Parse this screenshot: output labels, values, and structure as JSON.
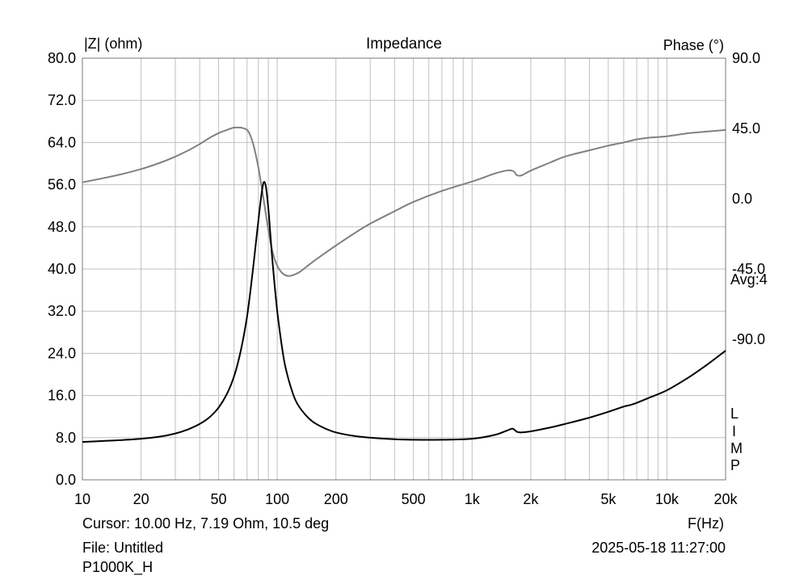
{
  "chart_data": {
    "type": "line",
    "title": "Impedance",
    "ylabel_left": "|Z| (ohm)",
    "ylabel_right": "Phase (°)",
    "xlabel": "F(Hz)",
    "xscale": "log",
    "xlim": [
      10,
      20000
    ],
    "ylim_left": [
      0,
      80
    ],
    "ylim_right": [
      -180,
      90
    ],
    "grid": true,
    "x_ticks": [
      {
        "v": 10,
        "label": "10"
      },
      {
        "v": 20,
        "label": "20"
      },
      {
        "v": 50,
        "label": "50"
      },
      {
        "v": 100,
        "label": "100"
      },
      {
        "v": 200,
        "label": "200"
      },
      {
        "v": 500,
        "label": "500"
      },
      {
        "v": 1000,
        "label": "1k"
      },
      {
        "v": 2000,
        "label": "2k"
      },
      {
        "v": 5000,
        "label": "5k"
      },
      {
        "v": 10000,
        "label": "10k"
      },
      {
        "v": 20000,
        "label": "20k"
      }
    ],
    "y_ticks_left": [
      {
        "v": 0,
        "label": "0.0"
      },
      {
        "v": 8,
        "label": "8.0"
      },
      {
        "v": 16,
        "label": "16.0"
      },
      {
        "v": 24,
        "label": "24.0"
      },
      {
        "v": 32,
        "label": "32.0"
      },
      {
        "v": 40,
        "label": "40.0"
      },
      {
        "v": 48,
        "label": "48.0"
      },
      {
        "v": 56,
        "label": "56.0"
      },
      {
        "v": 64,
        "label": "64.0"
      },
      {
        "v": 72,
        "label": "72.0"
      },
      {
        "v": 80,
        "label": "80.0"
      }
    ],
    "y_ticks_right": [
      {
        "v": 90,
        "label": "90.0"
      },
      {
        "v": 45,
        "label": "45.0"
      },
      {
        "v": 0,
        "label": "0.0"
      },
      {
        "v": -45,
        "label": "-45.0"
      },
      {
        "v": -90,
        "label": "-90.0"
      }
    ],
    "series": [
      {
        "axis": "left",
        "color": "#000000",
        "x": [
          10,
          15,
          20,
          25,
          30,
          35,
          40,
          45,
          50,
          55,
          60,
          65,
          70,
          74,
          78,
          81,
          84,
          86,
          88,
          90,
          92,
          95,
          100,
          105,
          110,
          120,
          130,
          150,
          175,
          200,
          250,
          300,
          400,
          500,
          700,
          1000,
          1300,
          1500,
          1600,
          1650,
          1700,
          1800,
          2000,
          2500,
          3000,
          4000,
          5000,
          6000,
          6500,
          7000,
          8000,
          10000,
          13000,
          16000,
          20000
        ],
        "y": [
          7.19,
          7.5,
          7.8,
          8.2,
          8.8,
          9.6,
          10.6,
          11.9,
          13.7,
          16.2,
          19.6,
          24.5,
          31.0,
          38.0,
          45.5,
          51.0,
          55.5,
          56.5,
          55.0,
          51.5,
          47.0,
          40.5,
          32.0,
          26.0,
          21.5,
          16.5,
          13.8,
          11.2,
          9.8,
          9.0,
          8.3,
          8.0,
          7.7,
          7.6,
          7.6,
          7.8,
          8.5,
          9.3,
          9.7,
          9.5,
          9.1,
          9.0,
          9.2,
          9.9,
          10.6,
          11.8,
          12.9,
          13.9,
          14.2,
          14.6,
          15.5,
          17.0,
          19.5,
          21.8,
          24.5
        ]
      },
      {
        "axis": "right",
        "color": "#808080",
        "x": [
          10,
          15,
          20,
          25,
          30,
          35,
          40,
          45,
          50,
          55,
          60,
          65,
          70,
          73,
          76,
          80,
          85,
          90,
          95,
          100,
          105,
          110,
          115,
          120,
          130,
          150,
          175,
          200,
          250,
          300,
          400,
          500,
          700,
          1000,
          1300,
          1500,
          1600,
          1650,
          1700,
          1800,
          2000,
          2500,
          3000,
          4000,
          5000,
          6000,
          7000,
          8000,
          10000,
          13000,
          16000,
          20000
        ],
        "y": [
          10.5,
          15,
          19,
          23,
          27,
          31,
          35,
          39,
          42,
          44,
          45.5,
          45.5,
          44,
          40,
          33,
          20,
          0,
          -20,
          -35,
          -43,
          -47,
          -49,
          -49.5,
          -49,
          -47,
          -41,
          -35,
          -30,
          -22,
          -16,
          -8,
          -2,
          5,
          11,
          16,
          18,
          18,
          17,
          15,
          15,
          18,
          23,
          27,
          31,
          34,
          36,
          38,
          39,
          40,
          42,
          43,
          44
        ]
      }
    ]
  },
  "right_marks": {
    "avg": "Avg:4",
    "letters": [
      "L",
      "I",
      "M",
      "P"
    ]
  },
  "info": {
    "cursor": "Cursor: 10.00 Hz, 7.19 Ohm, 10.5 deg",
    "file": "File: Untitled",
    "name": "P1000K_H",
    "datetime": "2025-05-18 11:27:00"
  }
}
